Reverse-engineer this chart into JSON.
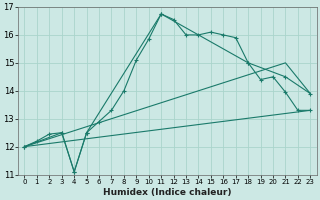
{
  "title": "",
  "xlabel": "Humidex (Indice chaleur)",
  "background_color": "#cce8e4",
  "grid_color": "#aad4cc",
  "line_color": "#1a7a6a",
  "xlim": [
    -0.5,
    23.5
  ],
  "ylim": [
    11,
    17
  ],
  "xticks": [
    0,
    1,
    2,
    3,
    4,
    5,
    6,
    7,
    8,
    9,
    10,
    11,
    12,
    13,
    14,
    15,
    16,
    17,
    18,
    19,
    20,
    21,
    22,
    23
  ],
  "yticks": [
    11,
    12,
    13,
    14,
    15,
    16,
    17
  ],
  "line1_x": [
    0,
    1,
    2,
    3,
    4,
    5,
    6,
    7,
    8,
    9,
    10,
    11,
    12,
    13,
    14,
    15,
    16,
    17,
    18,
    19,
    20,
    21,
    22,
    23
  ],
  "line1_y": [
    12.0,
    12.2,
    12.45,
    12.5,
    11.1,
    12.5,
    12.9,
    13.3,
    14.0,
    15.1,
    15.85,
    16.75,
    16.55,
    16.0,
    16.0,
    16.1,
    16.0,
    15.9,
    15.0,
    14.4,
    14.5,
    13.95,
    13.3,
    13.3
  ],
  "line2_x": [
    0,
    3,
    4,
    5,
    11,
    18,
    21,
    23
  ],
  "line2_y": [
    12.0,
    12.5,
    11.1,
    12.5,
    16.75,
    15.0,
    14.5,
    13.9
  ],
  "line3_x": [
    0,
    23
  ],
  "line3_y": [
    12.0,
    13.3
  ],
  "line4_x": [
    0,
    21,
    23
  ],
  "line4_y": [
    12.0,
    15.0,
    13.9
  ]
}
